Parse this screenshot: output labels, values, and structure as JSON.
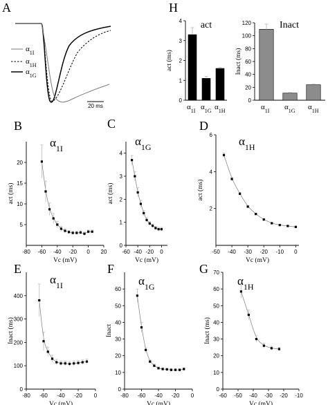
{
  "colors": {
    "ink": "#000000",
    "error_bar": "#bdbdbd",
    "fit_line": "#8a8a8a",
    "bar_inact": "#8c8c8c",
    "trace_1I": "#7a7a7a"
  },
  "chart_data": [
    {
      "panel": "A",
      "type": "line",
      "legend": [
        "α1I",
        "α1H",
        "α1G"
      ],
      "legend_styles": [
        "solid-gray",
        "dashed",
        "solid-black"
      ],
      "scale_bar_label": "20 ms"
    },
    {
      "panel": "H",
      "type": "bar",
      "title": "act",
      "ylabel": "act (ms)",
      "categories": [
        "α1I",
        "α1G",
        "α1H"
      ],
      "values": [
        3.3,
        1.1,
        1.6
      ],
      "errors": [
        0.35,
        0.1,
        0.05
      ],
      "ylim": [
        0,
        4
      ],
      "yticks": [
        0,
        1,
        2,
        3,
        4
      ]
    },
    {
      "panel": "H",
      "type": "bar",
      "title": "Inact",
      "ylabel": "Inact (ms)",
      "categories": [
        "α1I",
        "α1G",
        "α1H"
      ],
      "values": [
        110,
        11,
        24
      ],
      "errors": [
        8,
        1,
        1
      ],
      "ylim": [
        0,
        120
      ],
      "yticks": [
        0,
        20,
        40,
        60,
        80,
        100,
        120
      ]
    },
    {
      "panel": "B",
      "type": "scatter",
      "title": "α1I",
      "xlabel": "Vc (mV)",
      "ylabel": "act (ms)",
      "xlim": [
        -80,
        20
      ],
      "ylim": [
        0,
        25
      ],
      "xticks": [
        -80,
        -60,
        -40,
        -20,
        0,
        20
      ],
      "yticks": [
        5,
        10,
        15,
        20
      ],
      "x": [
        -60,
        -55,
        -50,
        -45,
        -40,
        -35,
        -30,
        -25,
        -20,
        -15,
        -10,
        -5,
        0,
        5
      ],
      "y": [
        20.2,
        13,
        8.7,
        6.5,
        5,
        4,
        3.5,
        3.2,
        3,
        3,
        3.1,
        2.8,
        3.3,
        3.3
      ],
      "err": [
        4,
        2.5,
        1.5,
        1.2,
        0.8,
        0.6,
        0.5,
        0.4,
        0.4,
        0.4,
        0.4,
        0.4,
        0.4,
        0.4
      ]
    },
    {
      "panel": "C",
      "type": "scatter",
      "title": "α1G",
      "xlabel": "Vc (mV)",
      "ylabel": "act (ms)",
      "xlim": [
        -60,
        10
      ],
      "ylim": [
        0,
        4.5
      ],
      "xticks": [
        -60,
        -40,
        -20,
        0
      ],
      "yticks": [
        0,
        1,
        2,
        3,
        4
      ],
      "x": [
        -50,
        -45,
        -40,
        -35,
        -30,
        -25,
        -20,
        -15,
        -10,
        -5,
        0
      ],
      "y": [
        3.7,
        3.0,
        2.3,
        1.8,
        1.4,
        1.1,
        0.95,
        0.85,
        0.75,
        0.7,
        0.7
      ],
      "err": [
        0.2,
        0.2,
        0.2,
        0.15,
        0.12,
        0.1,
        0.08,
        0.08,
        0.08,
        0.08,
        0.08
      ]
    },
    {
      "panel": "D",
      "type": "scatter",
      "title": "α1H",
      "xlabel": "Vc (mV)",
      "ylabel": "act (ms)",
      "xlim": [
        -50,
        2
      ],
      "ylim": [
        0,
        6
      ],
      "xticks": [
        -50,
        -40,
        -30,
        -20,
        -10,
        0
      ],
      "yticks": [
        2,
        4,
        6
      ],
      "x": [
        -45,
        -40,
        -35,
        -30,
        -25,
        -20,
        -15,
        -10,
        -5,
        0
      ],
      "y": [
        4.9,
        3.6,
        2.8,
        2.1,
        1.7,
        1.4,
        1.2,
        1.1,
        1.05,
        1.0
      ],
      "err": [
        0.12,
        0.1,
        0.08,
        0.07,
        0.05,
        0.05,
        0.04,
        0.04,
        0.04,
        0.04
      ]
    },
    {
      "panel": "E",
      "type": "scatter",
      "title": "α1I",
      "xlabel": "Vc (mV)",
      "ylabel": "Inact (ms)",
      "xlim": [
        -80,
        0
      ],
      "ylim": [
        0,
        500
      ],
      "xticks": [
        -80,
        -60,
        -40,
        -20,
        0
      ],
      "yticks": [
        0,
        100,
        200,
        300,
        400
      ],
      "x": [
        -65,
        -60,
        -55,
        -50,
        -45,
        -40,
        -35,
        -30,
        -25,
        -20,
        -15,
        -10
      ],
      "y": [
        380,
        205,
        160,
        130,
        115,
        110,
        110,
        108,
        110,
        112,
        115,
        118
      ],
      "err": [
        70,
        40,
        20,
        15,
        12,
        10,
        10,
        10,
        10,
        10,
        10,
        10
      ]
    },
    {
      "panel": "F",
      "type": "scatter",
      "title": "α1G",
      "xlabel": "Vc (mV)",
      "ylabel": "Inact",
      "xlim": [
        -80,
        0
      ],
      "ylim": [
        0,
        70
      ],
      "xticks": [
        -80,
        -60,
        -40,
        -20,
        0
      ],
      "yticks": [
        0,
        10,
        20,
        30,
        40,
        50,
        60
      ],
      "x": [
        -65,
        -60,
        -55,
        -50,
        -45,
        -40,
        -35,
        -30,
        -25,
        -20,
        -15,
        -10
      ],
      "y": [
        56,
        37,
        23.5,
        16.5,
        14,
        12.5,
        12,
        11.8,
        11.5,
        11.5,
        11.5,
        12
      ],
      "err": [
        4,
        3,
        1.5,
        1,
        1,
        0.8,
        0.8,
        0.8,
        0.8,
        0.8,
        0.8,
        0.8
      ]
    },
    {
      "panel": "G",
      "type": "scatter",
      "title": "α1H",
      "xlabel": "Vc (mV)",
      "ylabel": "Inact (ms)",
      "xlim": [
        -60,
        -10
      ],
      "ylim": [
        0,
        70
      ],
      "xticks": [
        -60,
        -50,
        -40,
        -30,
        -20,
        -10
      ],
      "yticks": [
        0,
        10,
        20,
        30,
        40,
        50,
        60,
        70
      ],
      "x": [
        -48,
        -43,
        -38,
        -33,
        -28,
        -23
      ],
      "y": [
        58.5,
        44.5,
        30,
        26,
        24.5,
        24
      ],
      "err": [
        4,
        3,
        2,
        1.5,
        1.2,
        1
      ]
    }
  ]
}
